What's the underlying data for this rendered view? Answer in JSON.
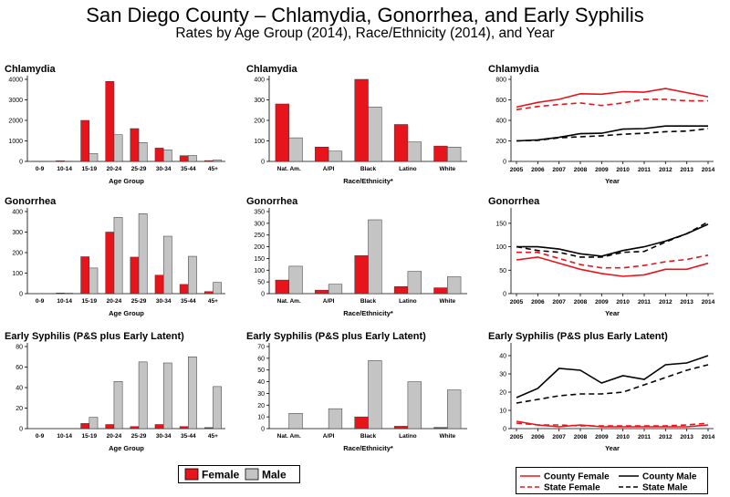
{
  "title": "San Diego County – Chlamydia, Gonorrhea, and Early Syphilis",
  "subtitle": "Rates by Age Group (2014), Race/Ethnicity (2014), and Year",
  "colors": {
    "female": "#e8141b",
    "male": "#c4c4c4",
    "line": "#000000"
  },
  "legends": {
    "bars": [
      {
        "label": "Female",
        "color": "#e8141b"
      },
      {
        "label": "Male",
        "color": "#c4c4c4"
      }
    ],
    "lines": [
      {
        "label": "County Female",
        "color": "#e8141b",
        "dash": false
      },
      {
        "label": "County Male",
        "color": "#000000",
        "dash": false
      },
      {
        "label": "State Female",
        "color": "#e8141b",
        "dash": true
      },
      {
        "label": "State Male",
        "color": "#000000",
        "dash": true
      }
    ]
  },
  "chart_data": [
    {
      "type": "bar",
      "title": "Chlamydia",
      "xlabel": "Age Group",
      "ylabel": "",
      "categories": [
        "0-9",
        "10-14",
        "15-19",
        "20-24",
        "25-29",
        "30-34",
        "35-44",
        "45+"
      ],
      "series": [
        {
          "name": "Female",
          "values": [
            5,
            30,
            2000,
            3900,
            1600,
            650,
            280,
            40
          ]
        },
        {
          "name": "Male",
          "values": [
            2,
            10,
            380,
            1300,
            920,
            560,
            290,
            70
          ]
        }
      ],
      "ylim": [
        0,
        4000
      ],
      "yticks": [
        0,
        1000,
        2000,
        3000,
        4000
      ]
    },
    {
      "type": "bar",
      "title": "Chlamydia",
      "xlabel": "Race/Ethnicity*",
      "ylabel": "",
      "categories": [
        "Nat. Am.",
        "A/PI",
        "Black",
        "Latino",
        "White"
      ],
      "series": [
        {
          "name": "Female",
          "values": [
            280,
            70,
            400,
            180,
            75
          ]
        },
        {
          "name": "Male",
          "values": [
            115,
            50,
            265,
            95,
            70
          ]
        }
      ],
      "ylim": [
        0,
        400
      ],
      "yticks": [
        0,
        100,
        200,
        300,
        400
      ]
    },
    {
      "type": "line",
      "title": "Chlamydia",
      "xlabel": "Year",
      "ylabel": "",
      "x": [
        2005,
        2006,
        2007,
        2008,
        2009,
        2010,
        2011,
        2012,
        2013,
        2014
      ],
      "series": [
        {
          "name": "County Female",
          "values": [
            530,
            575,
            605,
            660,
            655,
            680,
            675,
            710,
            670,
            630
          ]
        },
        {
          "name": "State Female",
          "values": [
            505,
            535,
            555,
            570,
            545,
            570,
            605,
            605,
            590,
            590
          ]
        },
        {
          "name": "County Male",
          "values": [
            200,
            210,
            235,
            270,
            275,
            315,
            320,
            345,
            345,
            345
          ]
        },
        {
          "name": "State Male",
          "values": [
            200,
            205,
            230,
            240,
            250,
            265,
            275,
            290,
            295,
            320
          ]
        }
      ],
      "ylim": [
        0,
        800
      ],
      "yticks": [
        0,
        200,
        400,
        600,
        800
      ]
    },
    {
      "type": "bar",
      "title": "Gonorrhea",
      "xlabel": "Age Group",
      "ylabel": "",
      "categories": [
        "0-9",
        "10-14",
        "15-19",
        "20-24",
        "25-29",
        "30-34",
        "35-44",
        "45+"
      ],
      "series": [
        {
          "name": "Female",
          "values": [
            0,
            3,
            180,
            300,
            178,
            90,
            45,
            10
          ]
        },
        {
          "name": "Male",
          "values": [
            0,
            2,
            125,
            372,
            390,
            280,
            182,
            55
          ]
        }
      ],
      "ylim": [
        0,
        400
      ],
      "yticks": [
        0,
        100,
        200,
        300,
        400
      ]
    },
    {
      "type": "bar",
      "title": "Gonorrhea",
      "xlabel": "Race/Ethnicity*",
      "ylabel": "",
      "categories": [
        "Nat. Am.",
        "A/PI",
        "Black",
        "Latino",
        "White"
      ],
      "series": [
        {
          "name": "Female",
          "values": [
            58,
            15,
            162,
            30,
            25
          ]
        },
        {
          "name": "Male",
          "values": [
            117,
            40,
            315,
            95,
            72
          ]
        }
      ],
      "ylim": [
        0,
        350
      ],
      "yticks": [
        0,
        50,
        100,
        150,
        200,
        250,
        300,
        350
      ]
    },
    {
      "type": "line",
      "title": "Gonorrhea",
      "xlabel": "Year",
      "ylabel": "",
      "x": [
        2005,
        2006,
        2007,
        2008,
        2009,
        2010,
        2011,
        2012,
        2013,
        2014
      ],
      "series": [
        {
          "name": "County Female",
          "values": [
            72,
            78,
            65,
            52,
            43,
            37,
            40,
            52,
            52,
            65
          ]
        },
        {
          "name": "State Female",
          "values": [
            88,
            88,
            75,
            62,
            55,
            55,
            60,
            68,
            73,
            82
          ]
        },
        {
          "name": "County Male",
          "values": [
            100,
            100,
            95,
            85,
            80,
            92,
            100,
            112,
            128,
            148
          ]
        },
        {
          "name": "State Male",
          "values": [
            100,
            92,
            88,
            78,
            78,
            88,
            90,
            110,
            128,
            153
          ]
        }
      ],
      "ylim": [
        0,
        175
      ],
      "yticks": [
        0,
        50,
        100,
        150
      ]
    },
    {
      "type": "bar",
      "title": "Early Syphilis (P&S plus Early Latent)",
      "xlabel": "Age Group",
      "ylabel": "",
      "categories": [
        "0-9",
        "10-14",
        "15-19",
        "20-24",
        "25-29",
        "30-34",
        "35-44",
        "45+"
      ],
      "series": [
        {
          "name": "Female",
          "values": [
            0,
            0,
            5,
            4,
            2,
            4,
            2,
            1
          ]
        },
        {
          "name": "Male",
          "values": [
            0,
            0,
            11,
            46,
            65,
            64,
            70,
            41
          ]
        }
      ],
      "ylim": [
        0,
        80
      ],
      "yticks": [
        0,
        20,
        40,
        60,
        80
      ]
    },
    {
      "type": "bar",
      "title": "Early Syphilis (P&S plus Early Latent)",
      "xlabel": "Race/Ethnicity*",
      "ylabel": "",
      "categories": [
        "Nat. Am.",
        "A/PI",
        "Black",
        "Latino",
        "White"
      ],
      "series": [
        {
          "name": "Female",
          "values": [
            0,
            0,
            10,
            2,
            1
          ]
        },
        {
          "name": "Male",
          "values": [
            13,
            17,
            58,
            40,
            33
          ]
        }
      ],
      "ylim": [
        0,
        70
      ],
      "yticks": [
        0,
        10,
        20,
        30,
        40,
        50,
        60,
        70
      ]
    },
    {
      "type": "line",
      "title": "Early Syphilis (P&S plus Early Latent)",
      "xlabel": "Year",
      "ylabel": "",
      "x": [
        2005,
        2006,
        2007,
        2008,
        2009,
        2010,
        2011,
        2012,
        2013,
        2014
      ],
      "series": [
        {
          "name": "County Female",
          "values": [
            4,
            2,
            1,
            2,
            1,
            1,
            1,
            1,
            1,
            2
          ]
        },
        {
          "name": "State Female",
          "values": [
            3,
            2,
            2,
            1.5,
            1.5,
            1.5,
            1.5,
            1.5,
            2,
            3
          ]
        },
        {
          "name": "County Male",
          "values": [
            17,
            22,
            33,
            32,
            25,
            29,
            27,
            35,
            36,
            40
          ]
        },
        {
          "name": "State Male",
          "values": [
            14,
            16,
            18,
            19,
            19,
            20,
            24,
            28,
            32,
            35
          ]
        }
      ],
      "ylim": [
        0,
        45
      ],
      "yticks": [
        0,
        10,
        20,
        30,
        40
      ]
    }
  ]
}
